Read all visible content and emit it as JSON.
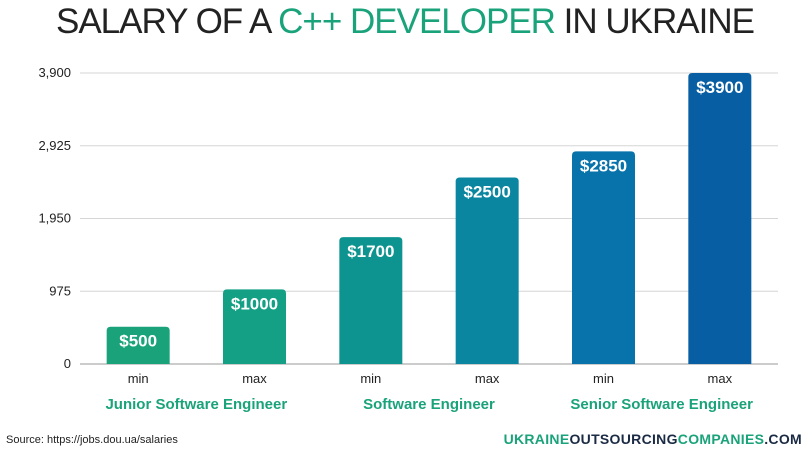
{
  "title": {
    "part1": "SALARY OF A ",
    "highlight": "C++ DEVELOPER",
    "part2": " IN UKRAINE"
  },
  "colors": {
    "title_highlight": "#1aa37a",
    "brand_dark": "#1a2a44",
    "brand_green": "#1aa37a",
    "bar_gradient": [
      "#1aa37a",
      "#14a084",
      "#0e9490",
      "#0a86a0",
      "#0872ab",
      "#075ea3"
    ]
  },
  "chart_data": {
    "type": "bar",
    "categories": [
      "min",
      "max",
      "min",
      "max",
      "min",
      "max"
    ],
    "groups": [
      "Junior Software Engineer",
      "Software Engineer",
      "Senior Software Engineer"
    ],
    "values": [
      500,
      1000,
      1700,
      2500,
      2850,
      3900
    ],
    "value_labels": [
      "$500",
      "$1000",
      "$1700",
      "$2500",
      "$2850",
      "$3900"
    ],
    "yticks": [
      0,
      975,
      1950,
      2925,
      3900
    ],
    "ytick_labels": [
      "0",
      "975",
      "1,950",
      "2,925",
      "3,900"
    ],
    "ylim": [
      0,
      3900
    ],
    "grid": true
  },
  "footer": {
    "source": "Source: https://jobs.dou.ua/salaries",
    "brand_part1": "UKRAINE",
    "brand_part2": "OUTSOURCING",
    "brand_part3": "COMPANIES",
    "brand_part4": ".COM"
  }
}
